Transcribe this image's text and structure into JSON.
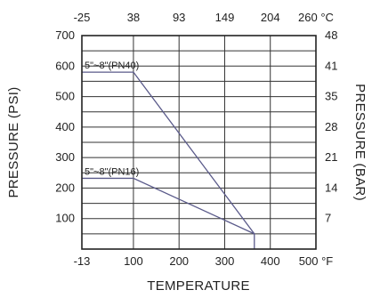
{
  "chart_data": {
    "type": "line",
    "xlabel": "TEMPERATURE",
    "ylabel_left": "PRESSURE (PSI)",
    "ylabel_right": "PRESSURE (BAR)",
    "x_bottom_ticks": [
      "-13",
      "100",
      "200",
      "300",
      "400",
      "500 °F"
    ],
    "x_top_ticks": [
      "-25",
      "38",
      "93",
      "149",
      "204",
      "260 °C"
    ],
    "y_left_ticks": [
      "700",
      "600",
      "500",
      "400",
      "300",
      "200",
      "100"
    ],
    "y_right_ticks": [
      "48",
      "41",
      "35",
      "28",
      "21",
      "14",
      "7"
    ],
    "xlim": [
      -13,
      500
    ],
    "ylim": [
      0,
      700
    ],
    "grid": true,
    "series": [
      {
        "name": "5\"~8\"(PN40)",
        "x": [
          -13,
          100,
          365,
          365
        ],
        "y": [
          580,
          580,
          50,
          0
        ]
      },
      {
        "name": "5\"~8\"(PN16)",
        "x": [
          -13,
          100,
          365
        ],
        "y": [
          232,
          232,
          50
        ]
      }
    ]
  }
}
